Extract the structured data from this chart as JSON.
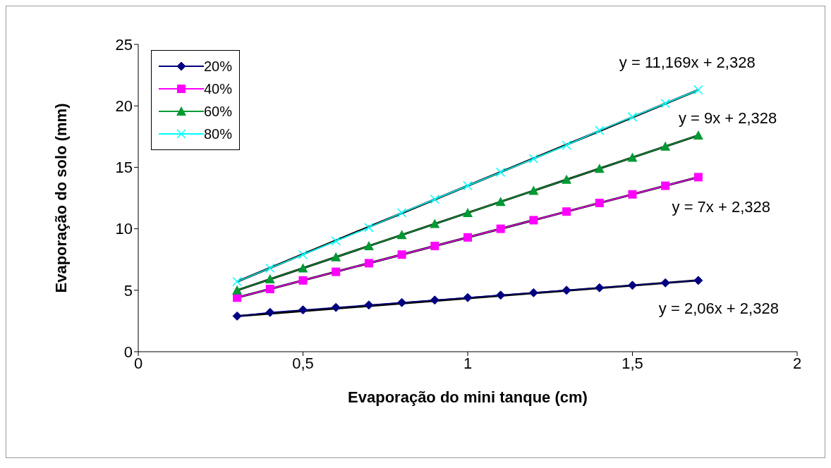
{
  "chart_data": {
    "type": "line",
    "xlabel": "Evaporação do mini tanque (cm)",
    "ylabel": "Evaporação do solo (mm)",
    "xlim": [
      0,
      2
    ],
    "xticks": [
      0,
      {
        "value": 0.5,
        "label": "0,5"
      },
      1,
      {
        "value": 1.5,
        "label": "1,5"
      },
      2
    ],
    "ylim": [
      0,
      25
    ],
    "yticks": [
      0,
      5,
      10,
      15,
      20,
      25
    ],
    "grid": false,
    "legend": "top left",
    "series": [
      {
        "type": "line",
        "color": "#000000",
        "x": [
          0.3,
          1.7
        ],
        "values": [
          2.9,
          5.8
        ]
      },
      {
        "type": "line",
        "color": "#000000",
        "x": [
          0.3,
          1.7
        ],
        "values": [
          4.4,
          14.2
        ]
      },
      {
        "type": "line",
        "color": "#000000",
        "x": [
          0.3,
          1.7
        ],
        "values": [
          5.0,
          17.6
        ]
      },
      {
        "type": "line",
        "color": "#000000",
        "x": [
          0.3,
          1.7
        ],
        "values": [
          5.7,
          21.3
        ]
      },
      {
        "name": "20%",
        "color": "#000080",
        "marker": "diamond",
        "x": [
          0.3,
          0.4,
          0.5,
          0.6,
          0.7,
          0.8,
          0.9,
          1.0,
          1.1,
          1.2,
          1.3,
          1.4,
          1.5,
          1.6,
          1.7
        ],
        "values": [
          2.9,
          3.2,
          3.4,
          3.6,
          3.8,
          4.0,
          4.2,
          4.4,
          4.6,
          4.8,
          5.0,
          5.2,
          5.4,
          5.6,
          5.8
        ]
      },
      {
        "name": "40%",
        "color": "#ff00ff",
        "marker": "square",
        "x": [
          0.3,
          0.4,
          0.5,
          0.6,
          0.7,
          0.8,
          0.9,
          1.0,
          1.1,
          1.2,
          1.3,
          1.4,
          1.5,
          1.6,
          1.7
        ],
        "values": [
          4.4,
          5.1,
          5.8,
          6.5,
          7.2,
          7.9,
          8.6,
          9.3,
          10.0,
          10.7,
          11.4,
          12.1,
          12.8,
          13.5,
          14.2
        ]
      },
      {
        "name": "60%",
        "color": "#009933",
        "marker": "triangle",
        "x": [
          0.3,
          0.4,
          0.5,
          0.6,
          0.7,
          0.8,
          0.9,
          1.0,
          1.1,
          1.2,
          1.3,
          1.4,
          1.5,
          1.6,
          1.7
        ],
        "values": [
          5.0,
          5.9,
          6.8,
          7.7,
          8.6,
          9.5,
          10.4,
          11.3,
          12.2,
          13.1,
          14.0,
          14.9,
          15.8,
          16.7,
          17.6
        ]
      },
      {
        "name": "80%",
        "color": "#00ffff",
        "marker": "cross",
        "x": [
          0.3,
          0.4,
          0.5,
          0.6,
          0.7,
          0.8,
          0.9,
          1.0,
          1.1,
          1.2,
          1.3,
          1.4,
          1.5,
          1.6,
          1.7
        ],
        "values": [
          5.7,
          6.8,
          7.9,
          9.0,
          10.1,
          11.3,
          12.4,
          13.5,
          14.6,
          15.7,
          16.8,
          18.0,
          19.1,
          20.2,
          21.3
        ]
      }
    ],
    "annotations": [
      "y = 11,169x + 2,328",
      "y = 9x + 2,328",
      "y = 7x + 2,328",
      "y = 2,06x + 2,328"
    ]
  }
}
